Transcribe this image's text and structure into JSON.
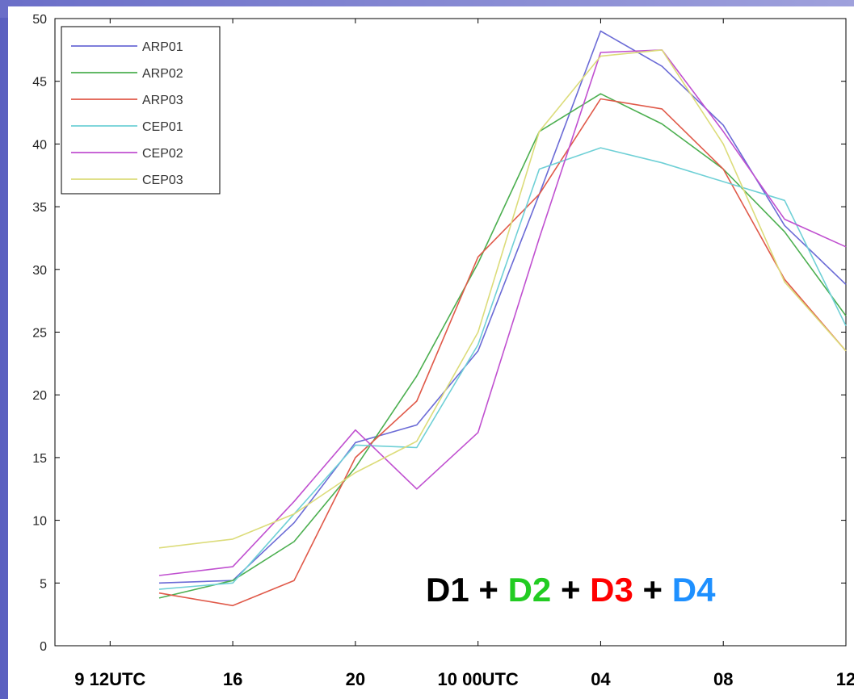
{
  "chart_data": {
    "type": "line",
    "x": [
      0,
      1,
      2,
      3,
      4,
      5,
      6,
      7,
      8,
      9,
      10,
      11,
      12
    ],
    "x_tick_labels": [
      {
        "x": 0,
        "label": "9 12UTC"
      },
      {
        "x": 2,
        "label": "16"
      },
      {
        "x": 4,
        "label": "20"
      },
      {
        "x": 6,
        "label": "10 00UTC"
      },
      {
        "x": 8,
        "label": "04"
      },
      {
        "x": 10,
        "label": "08"
      },
      {
        "x": 12,
        "label": "12"
      }
    ],
    "xlim": [
      -0.9,
      12
    ],
    "ylim": [
      0,
      50
    ],
    "y_ticks": [
      0,
      5,
      10,
      15,
      20,
      25,
      30,
      35,
      40,
      45,
      50
    ],
    "y_tick_labels": [
      "0",
      "5",
      "10",
      "15",
      "20",
      "25",
      "30",
      "35",
      "40",
      "45",
      "50"
    ],
    "legend_position": "top-left",
    "series": [
      {
        "name": "ARP01",
        "color": "#6b6bd6",
        "x": [
          0.8,
          2,
          3,
          4,
          5,
          6,
          7,
          8,
          9,
          10,
          11,
          12
        ],
        "values": [
          5.0,
          5.2,
          9.8,
          16.2,
          17.6,
          23.5,
          36.0,
          49.0,
          46.2,
          41.5,
          33.5,
          28.8
        ]
      },
      {
        "name": "ARP02",
        "color": "#4caf50",
        "x": [
          0.8,
          2,
          3,
          4,
          5,
          6,
          7,
          8,
          9,
          10,
          11,
          12
        ],
        "values": [
          3.8,
          5.2,
          8.3,
          14.2,
          21.5,
          30.5,
          41.0,
          44.0,
          41.6,
          38.0,
          33.0,
          26.3
        ]
      },
      {
        "name": "ARP03",
        "color": "#e05a4a",
        "x": [
          0.8,
          2,
          3,
          4,
          5,
          6,
          7,
          8,
          9,
          10,
          11,
          12
        ],
        "values": [
          4.2,
          3.2,
          5.2,
          15.0,
          19.5,
          31.0,
          36.0,
          43.6,
          42.8,
          38.0,
          29.2,
          23.5
        ]
      },
      {
        "name": "CEP01",
        "color": "#6fd0d6",
        "x": [
          0.8,
          2,
          3,
          4,
          5,
          6,
          7,
          8,
          9,
          10,
          11,
          12
        ],
        "values": [
          4.5,
          5.0,
          10.5,
          16.0,
          15.8,
          24.0,
          38.0,
          39.7,
          38.5,
          37.0,
          35.5,
          25.5
        ]
      },
      {
        "name": "CEP02",
        "color": "#c050d0",
        "x": [
          0.8,
          2,
          3,
          4,
          5,
          6,
          7,
          8,
          9,
          10,
          11,
          12
        ],
        "values": [
          5.6,
          6.3,
          11.5,
          17.2,
          12.5,
          17.0,
          32.5,
          47.3,
          47.5,
          41.0,
          34.0,
          31.8
        ]
      },
      {
        "name": "CEP03",
        "color": "#dcdc7a",
        "x": [
          0.8,
          2,
          3,
          4,
          5,
          6,
          7,
          8,
          9,
          10,
          11,
          12
        ],
        "values": [
          7.8,
          8.5,
          10.5,
          13.8,
          16.3,
          25.0,
          41.0,
          47.0,
          47.5,
          40.0,
          29.0,
          23.5
        ]
      }
    ],
    "annotation": [
      {
        "text": "D1",
        "color": "#000000"
      },
      {
        "text": " + ",
        "color": "#000000"
      },
      {
        "text": "D2",
        "color": "#22cc22"
      },
      {
        "text": " + ",
        "color": "#000000"
      },
      {
        "text": "D3",
        "color": "#ff0000"
      },
      {
        "text": " + ",
        "color": "#000000"
      },
      {
        "text": "D4",
        "color": "#1e90ff"
      }
    ]
  }
}
